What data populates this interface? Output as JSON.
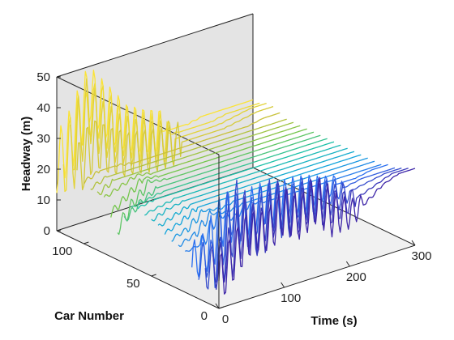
{
  "chart_data": {
    "type": "line",
    "subtype": "waterfall-3d",
    "title": "",
    "xlabel": "Time (s)",
    "ylabel": "Car Number",
    "zlabel": "Headway (m)",
    "xlim": [
      0,
      300
    ],
    "ylim": [
      0,
      120
    ],
    "zlim": [
      0,
      50
    ],
    "xticks": [
      "0",
      "100",
      "200",
      "300"
    ],
    "yticks": [
      "0",
      "50",
      "100"
    ],
    "zticks": [
      "0",
      "10",
      "20",
      "30",
      "40",
      "50"
    ],
    "grid": false,
    "colormap": "parula",
    "colors": {
      "pane_back": "#e4e4e4",
      "pane_side": "#ececec",
      "pane_floor": "#f1f1f1",
      "axes": "#222222",
      "colormap_stops": [
        "#3e26a8",
        "#2c6ff0",
        "#13a4dc",
        "#1cc0a8",
        "#74c64d",
        "#c8c13a",
        "#fbe335"
      ]
    },
    "trace_car_numbers": [
      0,
      5,
      10,
      15,
      20,
      25,
      30,
      35,
      40,
      45,
      50,
      55,
      60,
      65,
      70,
      75,
      80,
      85,
      90,
      95,
      100,
      105,
      110,
      115,
      120
    ],
    "traces": [
      {
        "car": 0,
        "t": [
          0,
          25,
          50,
          75,
          100,
          125,
          150,
          175,
          200,
          225,
          250,
          275,
          300
        ],
        "headway": [
          9,
          16,
          22,
          20,
          25,
          21,
          25,
          19,
          17,
          19,
          23,
          25,
          25
        ]
      },
      {
        "car": 5,
        "t": [
          0,
          25,
          50,
          75,
          100,
          125,
          150,
          175,
          200,
          225,
          250,
          275,
          300
        ],
        "headway": [
          11,
          14,
          24,
          18,
          26,
          20,
          24,
          20,
          19,
          20,
          22,
          24,
          24
        ]
      },
      {
        "car": 10,
        "t": [
          0,
          25,
          50,
          75,
          100,
          125,
          150,
          175,
          200,
          225,
          250,
          275,
          300
        ],
        "headway": [
          10,
          13,
          27,
          17,
          25,
          19,
          23,
          21,
          20,
          21,
          22,
          23,
          23
        ]
      },
      {
        "car": 15,
        "t": [
          0,
          25,
          50,
          75,
          100,
          125,
          150,
          175,
          200,
          225,
          250,
          275,
          300
        ],
        "headway": [
          12,
          12,
          25,
          19,
          24,
          20,
          22,
          21,
          21,
          21,
          22,
          22,
          22
        ]
      },
      {
        "car": 20,
        "t": [
          0,
          25,
          50,
          75,
          100,
          125,
          150,
          175,
          200,
          225,
          250,
          275,
          300
        ],
        "headway": [
          11,
          13,
          23,
          18,
          23,
          21,
          22,
          21,
          21,
          21,
          21,
          22,
          22
        ]
      },
      {
        "car": 25,
        "t": [
          0,
          25,
          50,
          75,
          100,
          125,
          150,
          175,
          200,
          225,
          250,
          275,
          300
        ],
        "headway": [
          13,
          14,
          22,
          19,
          22,
          21,
          21,
          21,
          21,
          21,
          21,
          21,
          21
        ]
      },
      {
        "car": 30,
        "t": [
          0,
          25,
          50,
          75,
          100,
          125,
          150,
          175,
          200,
          225,
          250,
          275,
          300
        ],
        "headway": [
          14,
          16,
          21,
          20,
          21,
          21,
          21,
          21,
          21,
          21,
          21,
          21,
          21
        ]
      },
      {
        "car": 35,
        "t": [
          0,
          25,
          50,
          75,
          100,
          125,
          150,
          175,
          200,
          225,
          250,
          275,
          300
        ],
        "headway": [
          15,
          17,
          21,
          20,
          21,
          21,
          21,
          21,
          21,
          21,
          21,
          21,
          21
        ]
      },
      {
        "car": 40,
        "t": [
          0,
          25,
          50,
          75,
          100,
          125,
          150,
          175,
          200,
          225,
          250,
          275,
          300
        ],
        "headway": [
          16,
          18,
          21,
          21,
          21,
          21,
          21,
          21,
          21,
          21,
          21,
          21,
          21
        ]
      },
      {
        "car": 45,
        "t": [
          0,
          25,
          50,
          75,
          100,
          125,
          150,
          175,
          200,
          225,
          250,
          275,
          300
        ],
        "headway": [
          17,
          19,
          21,
          21,
          21,
          21,
          21,
          21,
          21,
          21,
          21,
          21,
          21
        ]
      },
      {
        "car": 50,
        "t": [
          0,
          25,
          50,
          75,
          100,
          125,
          150,
          175,
          200,
          225,
          250,
          275,
          300
        ],
        "headway": [
          18,
          20,
          21,
          21,
          21,
          21,
          21,
          21,
          21,
          21,
          21,
          21,
          21
        ]
      },
      {
        "car": 55,
        "t": [
          0,
          25,
          50,
          75,
          100,
          125,
          150,
          175,
          200,
          225,
          250,
          275,
          300
        ],
        "headway": [
          19,
          20,
          21,
          21,
          21,
          21,
          21,
          21,
          21,
          21,
          21,
          21,
          21
        ]
      },
      {
        "car": 60,
        "t": [
          0,
          25,
          50,
          75,
          100,
          125,
          150,
          175,
          200,
          225,
          250,
          275,
          300
        ],
        "headway": [
          20,
          21,
          21,
          21,
          21,
          21,
          21,
          21,
          21,
          21,
          21,
          21,
          21
        ]
      },
      {
        "car": 65,
        "t": [
          0,
          25,
          50,
          75,
          100,
          125,
          150,
          175,
          200,
          225,
          250,
          275,
          300
        ],
        "headway": [
          19,
          20,
          21,
          21,
          21,
          21,
          21,
          21,
          21,
          21,
          21,
          21,
          21
        ]
      },
      {
        "car": 70,
        "t": [
          0,
          25,
          50,
          75,
          100,
          125,
          150,
          175,
          200,
          225,
          250,
          275,
          300
        ],
        "headway": [
          14,
          18,
          21,
          21,
          21,
          21,
          21,
          21,
          21,
          21,
          21,
          21,
          21
        ]
      },
      {
        "car": 75,
        "t": [
          0,
          25,
          50,
          75,
          100,
          125,
          150,
          175,
          200,
          225,
          250,
          275,
          300
        ],
        "headway": [
          10,
          17,
          22,
          21,
          21,
          21,
          21,
          21,
          21,
          21,
          21,
          21,
          21
        ]
      },
      {
        "car": 80,
        "t": [
          0,
          25,
          50,
          75,
          100,
          125,
          150,
          175,
          200,
          225,
          250,
          275,
          300
        ],
        "headway": [
          14,
          18,
          22,
          21,
          21,
          21,
          21,
          21,
          21,
          21,
          21,
          21,
          21
        ]
      },
      {
        "car": 85,
        "t": [
          0,
          25,
          50,
          75,
          100,
          125,
          150,
          175,
          200,
          225,
          250,
          275,
          300
        ],
        "headway": [
          18,
          20,
          22,
          21,
          21,
          21,
          21,
          21,
          21,
          21,
          21,
          21,
          21
        ]
      },
      {
        "car": 90,
        "t": [
          0,
          25,
          50,
          75,
          100,
          125,
          150,
          175,
          200,
          225,
          250,
          275,
          300
        ],
        "headway": [
          18,
          21,
          21,
          21,
          21,
          21,
          21,
          21,
          21,
          21,
          21,
          21,
          21
        ]
      },
      {
        "car": 95,
        "t": [
          0,
          25,
          50,
          75,
          100,
          125,
          150,
          175,
          200,
          225,
          250,
          275,
          300
        ],
        "headway": [
          19,
          21,
          21,
          21,
          21,
          21,
          21,
          21,
          21,
          21,
          21,
          21,
          21
        ]
      },
      {
        "car": 100,
        "t": [
          0,
          25,
          50,
          75,
          100,
          125,
          150,
          175,
          200,
          225,
          250,
          275,
          300
        ],
        "headway": [
          20,
          22,
          22,
          21,
          21,
          21,
          21,
          21,
          21,
          21,
          21,
          22,
          22
        ]
      },
      {
        "car": 105,
        "t": [
          0,
          25,
          50,
          75,
          100,
          125,
          150,
          175,
          200,
          225,
          250,
          275,
          300
        ],
        "headway": [
          22,
          30,
          26,
          23,
          22,
          21,
          21,
          21,
          21,
          21,
          22,
          23,
          23
        ]
      },
      {
        "car": 110,
        "t": [
          0,
          25,
          50,
          75,
          100,
          125,
          150,
          175,
          200,
          225,
          250,
          275,
          300
        ],
        "headway": [
          24,
          40,
          32,
          27,
          24,
          22,
          21,
          21,
          21,
          21,
          22,
          23,
          23
        ]
      },
      {
        "car": 115,
        "t": [
          0,
          25,
          50,
          75,
          100,
          125,
          150,
          175,
          200,
          225,
          250,
          275,
          300
        ],
        "headway": [
          22,
          34,
          38,
          30,
          26,
          23,
          22,
          21,
          21,
          21,
          22,
          22,
          22
        ]
      },
      {
        "car": 120,
        "t": [
          0,
          25,
          50,
          75,
          100,
          125,
          150,
          175,
          200,
          225,
          250,
          275,
          300
        ],
        "headway": [
          22,
          30,
          41,
          34,
          27,
          24,
          22,
          21,
          21,
          22,
          22,
          22,
          22
        ]
      }
    ]
  }
}
